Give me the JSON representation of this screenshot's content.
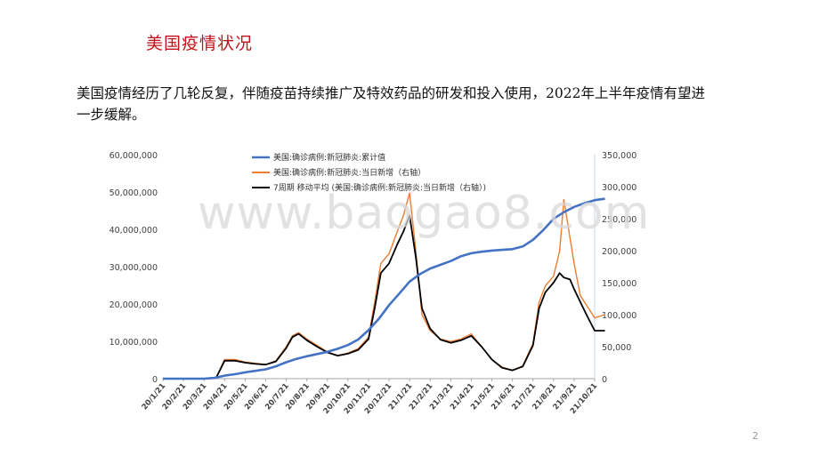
{
  "slide": {
    "title": "美国疫情状况",
    "body": "美国疫情经历了几轮反复，伴随疫苗持续推广及特效药品的研发和投入使用，2022年上半年疫情有望进一步缓解。",
    "watermark": "www.baogao8.com",
    "page_number": "2"
  },
  "chart_data": {
    "type": "line",
    "title": "",
    "x_ticks": [
      "20/1/21",
      "20/2/21",
      "20/3/21",
      "20/4/21",
      "20/5/21",
      "20/6/21",
      "20/7/21",
      "20/8/21",
      "20/9/21",
      "20/10/21",
      "20/11/21",
      "20/12/21",
      "21/1/21",
      "21/2/21",
      "21/3/21",
      "21/4/21",
      "21/5/21",
      "21/6/21",
      "21/7/21",
      "21/8/21",
      "21/9/21",
      "21/10/21"
    ],
    "y_left": {
      "range": [
        0,
        60000000
      ],
      "ticks": [
        "0",
        "10,000,000",
        "20,000,000",
        "30,000,000",
        "40,000,000",
        "50,000,000",
        "60,000,000"
      ]
    },
    "y_right": {
      "range": [
        0,
        350000
      ],
      "ticks": [
        "0",
        "50,000",
        "100,000",
        "150,000",
        "200,000",
        "250,000",
        "300,000",
        "350,000"
      ]
    },
    "grid": false,
    "legend_position": "top-left",
    "colors": {
      "cumulative": "#4472c4",
      "daily": "#ed7d31",
      "ma7": "#000000",
      "axis": "#a6a6a6"
    },
    "series": [
      {
        "name": "美国:确诊病例:新冠肺炎:累计值",
        "axis": "left",
        "x": [
          0,
          1,
          2,
          2.5,
          3,
          3.5,
          4,
          4.5,
          5,
          5.5,
          6,
          6.5,
          7,
          7.5,
          8,
          8.5,
          9,
          9.5,
          10,
          10.5,
          11,
          11.5,
          12,
          12.5,
          13,
          13.5,
          14,
          14.5,
          15,
          15.5,
          16,
          16.5,
          17,
          17.5,
          18,
          18.5,
          19,
          19.5,
          20,
          20.5,
          21,
          21.5
        ],
        "y": [
          0,
          0,
          0,
          200000,
          800000,
          1200000,
          1700000,
          2100000,
          2500000,
          3300000,
          4400000,
          5300000,
          6000000,
          6600000,
          7200000,
          8000000,
          9000000,
          10500000,
          13000000,
          16000000,
          19700000,
          22800000,
          26000000,
          28000000,
          29500000,
          30500000,
          31500000,
          32800000,
          33600000,
          34000000,
          34300000,
          34500000,
          34700000,
          35400000,
          37200000,
          39800000,
          42800000,
          44600000,
          46000000,
          47000000,
          47800000,
          48200000
        ]
      },
      {
        "name": "美国:确诊病例:新冠肺炎:当日新增（右轴）",
        "axis": "right",
        "x": [
          0,
          1,
          2,
          2.6,
          3,
          3.5,
          4,
          4.5,
          5,
          5.5,
          6,
          6.3,
          6.6,
          7,
          7.5,
          8,
          8.5,
          9,
          9.5,
          10,
          10.3,
          10.6,
          11,
          11.4,
          11.7,
          12,
          12.3,
          12.6,
          13,
          13.5,
          14,
          14.5,
          15,
          15.5,
          16,
          16.5,
          17,
          17.5,
          18,
          18.3,
          18.6,
          19,
          19.3,
          19.5,
          19.8,
          20,
          20.3,
          20.6,
          21,
          21.5
        ],
        "y": [
          0,
          0,
          0,
          2000,
          30000,
          30000,
          26000,
          24000,
          22000,
          28000,
          50000,
          67000,
          72000,
          62000,
          52000,
          42000,
          36000,
          40000,
          47000,
          65000,
          120000,
          180000,
          195000,
          230000,
          255000,
          290000,
          200000,
          100000,
          75000,
          62000,
          58000,
          62000,
          70000,
          50000,
          30000,
          18000,
          13000,
          20000,
          55000,
          120000,
          145000,
          160000,
          200000,
          280000,
          220000,
          180000,
          130000,
          115000,
          95000,
          100000
        ]
      },
      {
        "name": "7周期 移动平均 (美国:确诊病例:新冠肺炎:当日新增（右轴）)",
        "axis": "right",
        "x": [
          0,
          1,
          2,
          2.6,
          3,
          3.5,
          4,
          4.5,
          5,
          5.5,
          6,
          6.3,
          6.6,
          7,
          7.5,
          8,
          8.5,
          9,
          9.5,
          10,
          10.3,
          10.6,
          11,
          11.4,
          11.7,
          12,
          12.3,
          12.6,
          13,
          13.5,
          14,
          14.5,
          15,
          15.5,
          16,
          16.5,
          17,
          17.5,
          18,
          18.3,
          18.6,
          19,
          19.3,
          19.5,
          19.8,
          20,
          20.3,
          20.6,
          21,
          21.5
        ],
        "y": [
          0,
          0,
          0,
          2000,
          28000,
          28000,
          25000,
          23000,
          22000,
          27000,
          48000,
          65000,
          70000,
          60000,
          50000,
          41000,
          36000,
          39000,
          45000,
          62000,
          110000,
          165000,
          180000,
          210000,
          230000,
          255000,
          190000,
          110000,
          78000,
          61000,
          56000,
          60000,
          67000,
          50000,
          30000,
          17000,
          13000,
          19000,
          52000,
          110000,
          135000,
          150000,
          165000,
          158000,
          155000,
          140000,
          120000,
          100000,
          75000,
          75000
        ]
      }
    ]
  }
}
